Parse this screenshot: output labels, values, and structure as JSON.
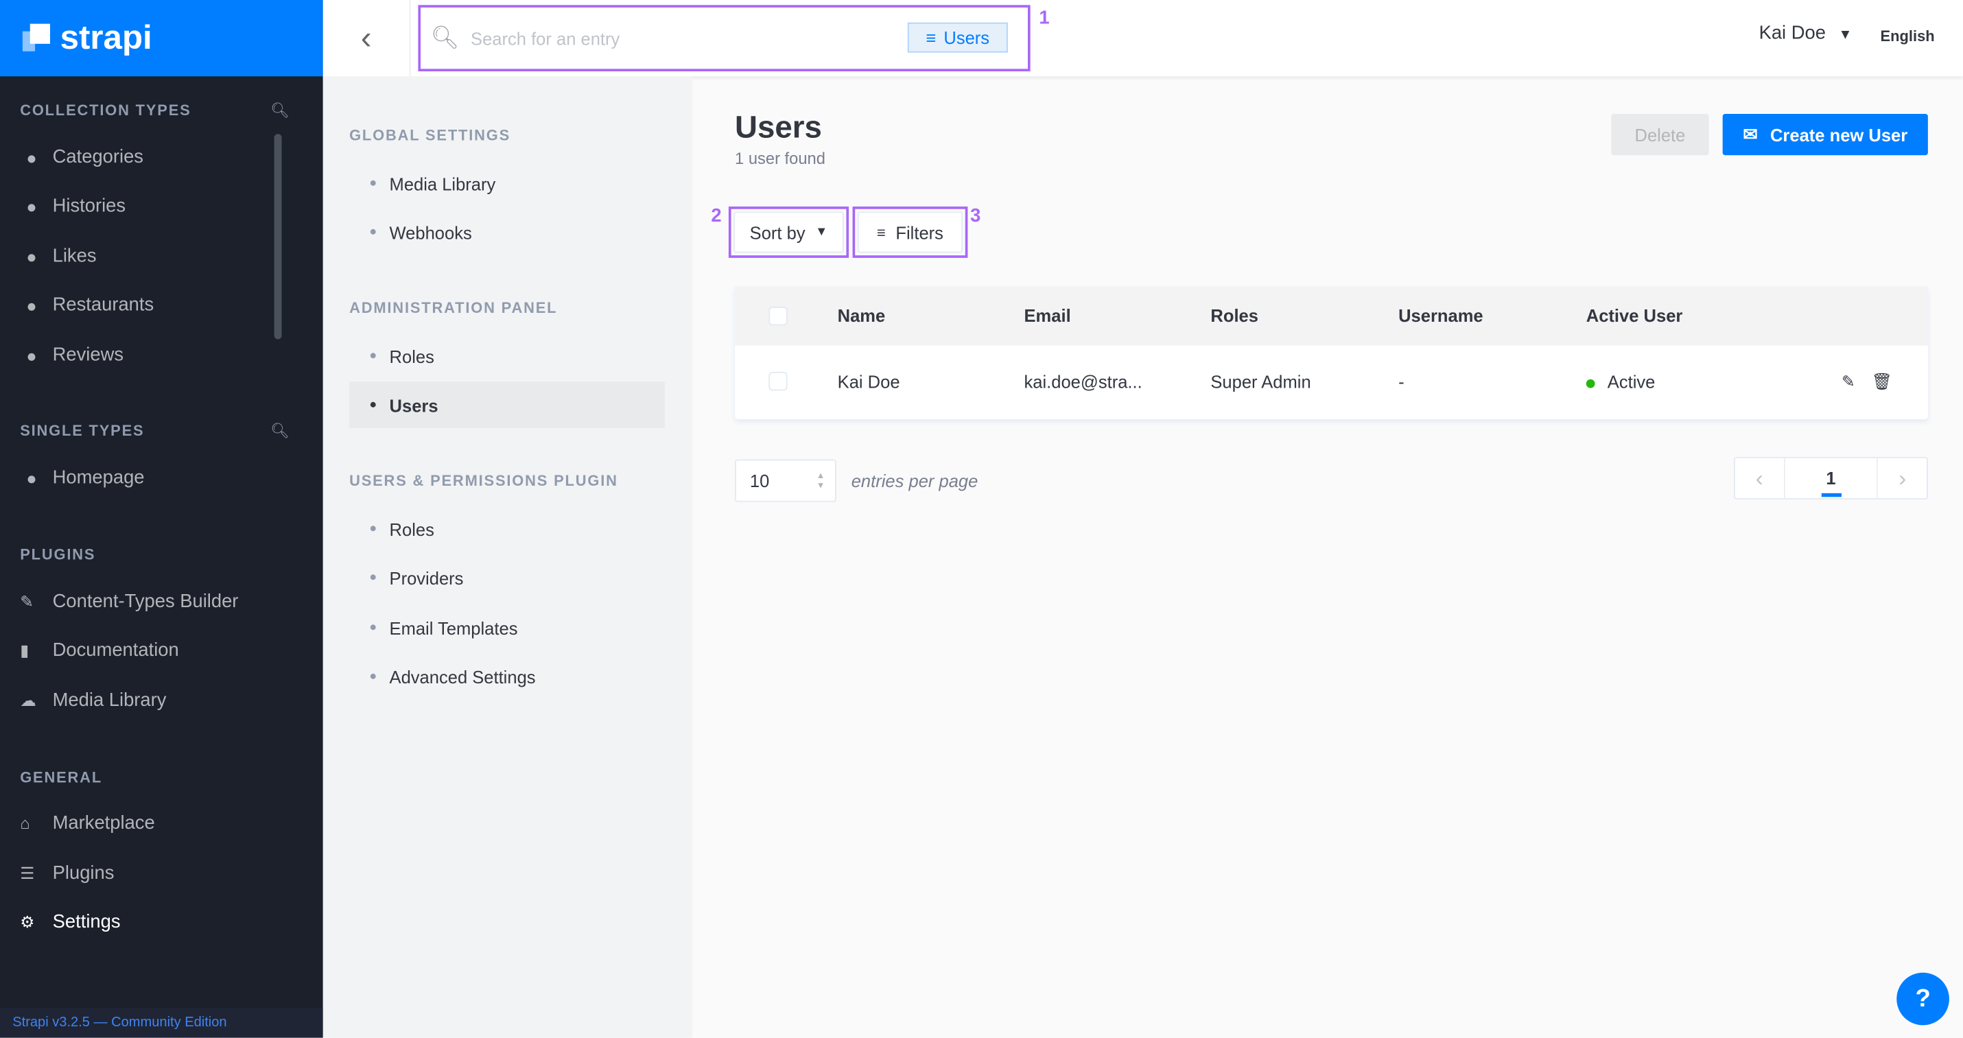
{
  "brand": "strapi",
  "sidebar": {
    "collection_title": "COLLECTION TYPES",
    "collection_items": [
      {
        "label": "Categories"
      },
      {
        "label": "Histories"
      },
      {
        "label": "Likes"
      },
      {
        "label": "Restaurants"
      },
      {
        "label": "Reviews"
      }
    ],
    "single_title": "SINGLE TYPES",
    "single_items": [
      {
        "label": "Homepage"
      }
    ],
    "plugins_title": "PLUGINS",
    "plugins_items": [
      {
        "label": "Content-Types Builder",
        "icon": "paintbrush-icon"
      },
      {
        "label": "Documentation",
        "icon": "book-icon"
      },
      {
        "label": "Media Library",
        "icon": "cloud-upload-icon"
      }
    ],
    "general_title": "GENERAL",
    "general_items": [
      {
        "label": "Marketplace",
        "icon": "basket-icon"
      },
      {
        "label": "Plugins",
        "icon": "list-icon"
      },
      {
        "label": "Settings",
        "icon": "gear-icon",
        "active": true
      }
    ],
    "footer": "Strapi v3.2.5 — Community Edition"
  },
  "header": {
    "search_placeholder": "Search for an entry",
    "search_chip": "Users",
    "user": "Kai Doe",
    "language": "English"
  },
  "markers": [
    "1",
    "2",
    "3"
  ],
  "settings_menu": {
    "global_title": "GLOBAL SETTINGS",
    "global_items": [
      "Media Library",
      "Webhooks"
    ],
    "admin_title": "ADMINISTRATION PANEL",
    "admin_items": [
      "Roles",
      "Users"
    ],
    "up_title": "USERS & PERMISSIONS PLUGIN",
    "up_items": [
      "Roles",
      "Providers",
      "Email Templates",
      "Advanced Settings"
    ],
    "active": "Users"
  },
  "main": {
    "title": "Users",
    "subtitle": "1 user found",
    "delete_label": "Delete",
    "create_label": "Create new User",
    "sort_label": "Sort by",
    "filters_label": "Filters",
    "columns": [
      "Name",
      "Email",
      "Roles",
      "Username",
      "Active User"
    ],
    "rows": [
      {
        "name": "Kai Doe",
        "email": "kai.doe@stra...",
        "roles": "Super Admin",
        "username": "-",
        "active": "Active"
      }
    ],
    "per_page": "10",
    "per_page_label": "entries per page",
    "current_page": "1"
  },
  "colors": {
    "brand": "#007eff",
    "highlight": "#a867f7",
    "active": "#27b70f"
  }
}
